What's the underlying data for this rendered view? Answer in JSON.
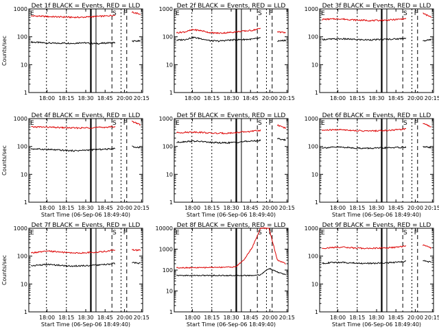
{
  "figure": {
    "background": "#ffffff",
    "axis_color": "#000000",
    "events_color": "#000000",
    "lld_color": "#dd0000"
  },
  "chart_data": [
    {
      "type": "line",
      "title": "Det 1f BLACK = Events, RED = LLD",
      "xlabel": "",
      "ylabel": "Counts/sec",
      "x_tick_labels": [
        "18:00",
        "18:15",
        "18:30",
        "18:45",
        "20:00",
        "20:15"
      ],
      "y_tick_labels": [
        "1000",
        "100",
        "10",
        "1"
      ],
      "ylim": [
        1,
        1000
      ],
      "yscale": "log",
      "markers": {
        "E": "E",
        "S": "S",
        "F": "F"
      },
      "series": [
        {
          "color": "#000000",
          "values": [
            65,
            62,
            60,
            58,
            60,
            58,
            62,
            58,
            57,
            60,
            62,
            null,
            70,
            70
          ]
        },
        {
          "color": "#dd0000",
          "values": [
            560,
            550,
            530,
            520,
            510,
            500,
            500,
            520,
            540,
            560,
            600,
            null,
            760,
            650
          ]
        }
      ]
    },
    {
      "type": "line",
      "title": "Det 2f BLACK = Events, RED = LLD",
      "xlabel": "",
      "ylabel": "",
      "x_tick_labels": [
        "18:00",
        "18:15",
        "18:30",
        "18:45",
        "20:00",
        "20:15"
      ],
      "y_tick_labels": [
        "1000",
        "100",
        "10",
        "1"
      ],
      "ylim": [
        1,
        1000
      ],
      "yscale": "log",
      "markers": {
        "E": "E",
        "S": "S",
        "F": "F"
      },
      "series": [
        {
          "color": "#000000",
          "values": [
            75,
            80,
            95,
            85,
            72,
            70,
            75,
            78,
            80,
            82,
            90,
            null,
            70,
            75
          ]
        },
        {
          "color": "#dd0000",
          "values": [
            140,
            150,
            180,
            165,
            140,
            135,
            140,
            150,
            160,
            170,
            200,
            null,
            150,
            140
          ]
        }
      ]
    },
    {
      "type": "line",
      "title": "Det 3f BLACK = Events, RED = LLD",
      "xlabel": "",
      "ylabel": "",
      "x_tick_labels": [
        "18:00",
        "18:15",
        "18:30",
        "18:45",
        "20:00",
        "20:15"
      ],
      "y_tick_labels": [
        "1000",
        "100",
        "10",
        "1"
      ],
      "ylim": [
        1,
        1000
      ],
      "yscale": "log",
      "markers": {
        "E": "E",
        "S": "S",
        "F": "F"
      },
      "series": [
        {
          "color": "#000000",
          "values": [
            80,
            82,
            84,
            83,
            80,
            78,
            78,
            80,
            82,
            84,
            90,
            null,
            70,
            80
          ]
        },
        {
          "color": "#dd0000",
          "values": [
            420,
            430,
            440,
            420,
            400,
            390,
            380,
            390,
            400,
            420,
            450,
            null,
            700,
            500
          ]
        }
      ]
    },
    {
      "type": "line",
      "title": "Det 4f BLACK = Events, RED = LLD",
      "xlabel": "Start Time (06-Sep-06 18:49:40)",
      "ylabel": "Counts/sec",
      "x_tick_labels": [
        "18:00",
        "18:15",
        "18:30",
        "18:45",
        "20:00",
        "20:15"
      ],
      "y_tick_labels": [
        "1000",
        "100",
        "10",
        "1"
      ],
      "ylim": [
        1,
        1000
      ],
      "yscale": "log",
      "markers": {
        "E": "E",
        "S": "S",
        "F": "F"
      },
      "series": [
        {
          "color": "#000000",
          "values": [
            82,
            80,
            78,
            75,
            72,
            70,
            72,
            75,
            78,
            80,
            85,
            null,
            100,
            90
          ]
        },
        {
          "color": "#dd0000",
          "values": [
            500,
            500,
            490,
            480,
            470,
            460,
            460,
            470,
            480,
            490,
            520,
            null,
            800,
            600
          ]
        }
      ]
    },
    {
      "type": "line",
      "title": "Det 5f BLACK = Events, RED = LLD",
      "xlabel": "Start Time (06-Sep-06 18:49:40)",
      "ylabel": "",
      "x_tick_labels": [
        "18:00",
        "18:15",
        "18:30",
        "18:45",
        "20:00",
        "20:15"
      ],
      "y_tick_labels": [
        "1000",
        "100",
        "10",
        "1"
      ],
      "ylim": [
        1,
        1000
      ],
      "yscale": "log",
      "markers": {
        "E": "E",
        "S": "S",
        "F": "F"
      },
      "series": [
        {
          "color": "#000000",
          "values": [
            140,
            150,
            155,
            150,
            140,
            135,
            135,
            140,
            150,
            155,
            165,
            null,
            190,
            170
          ]
        },
        {
          "color": "#dd0000",
          "values": [
            310,
            320,
            330,
            320,
            300,
            295,
            300,
            310,
            330,
            350,
            380,
            null,
            580,
            450
          ]
        }
      ]
    },
    {
      "type": "line",
      "title": "Det 6f BLACK = Events, RED = LLD",
      "xlabel": "Start Time (06-Sep-06 18:49:40)",
      "ylabel": "",
      "x_tick_labels": [
        "18:00",
        "18:15",
        "18:30",
        "18:45",
        "20:00",
        "20:15"
      ],
      "y_tick_labels": [
        "1000",
        "100",
        "10",
        "1"
      ],
      "ylim": [
        1,
        1000
      ],
      "yscale": "log",
      "markers": {
        "E": "E",
        "S": "S",
        "F": "F"
      },
      "series": [
        {
          "color": "#000000",
          "values": [
            90,
            92,
            95,
            92,
            88,
            86,
            86,
            88,
            90,
            92,
            95,
            null,
            100,
            90
          ]
        },
        {
          "color": "#dd0000",
          "values": [
            380,
            390,
            400,
            390,
            370,
            360,
            360,
            370,
            380,
            400,
            430,
            null,
            700,
            500
          ]
        }
      ]
    },
    {
      "type": "line",
      "title": "Det 7f BLACK = Events, RED = LLD",
      "xlabel": "Start Time (06-Sep-06 18:49:40)",
      "ylabel": "Counts/sec",
      "x_tick_labels": [
        "18:00",
        "18:15",
        "18:30",
        "18:45",
        "20:00",
        "20:15"
      ],
      "y_tick_labels": [
        "1000",
        "100",
        "10",
        "1"
      ],
      "ylim": [
        1,
        1000
      ],
      "yscale": "log",
      "markers": {
        "E": "E",
        "S": "S",
        "F": "F"
      },
      "series": [
        {
          "color": "#000000",
          "values": [
            45,
            48,
            50,
            48,
            45,
            44,
            45,
            46,
            48,
            50,
            55,
            null,
            60,
            55
          ]
        },
        {
          "color": "#dd0000",
          "values": [
            130,
            140,
            150,
            145,
            135,
            130,
            130,
            135,
            140,
            150,
            170,
            null,
            170,
            160
          ]
        }
      ]
    },
    {
      "type": "line",
      "title": "Det 8f BLACK = Events, RED = LLD",
      "xlabel": "Start Time (06-Sep-06 18:49:40)",
      "ylabel": "",
      "x_tick_labels": [
        "18:00",
        "18:15",
        "18:30",
        "18:45",
        "20:00",
        "20:15"
      ],
      "y_tick_labels": [
        "10000",
        "1000",
        "100",
        "10",
        "1"
      ],
      "ylim": [
        1,
        10000
      ],
      "yscale": "log",
      "markers": {
        "E": "E",
        "S": "S",
        "F": "F"
      },
      "series": [
        {
          "color": "#000000",
          "values": [
            55,
            55,
            55,
            55,
            55,
            55,
            55,
            55,
            55,
            55,
            60,
            120,
            80,
            60
          ]
        },
        {
          "color": "#dd0000",
          "values": [
            130,
            130,
            130,
            130,
            135,
            135,
            140,
            140,
            300,
            1200,
            10000,
            10000,
            300,
            200
          ]
        }
      ]
    },
    {
      "type": "line",
      "title": "Det 9f BLACK = Events, RED = LLD",
      "xlabel": "Start Time (06-Sep-06 18:49:40)",
      "ylabel": "",
      "x_tick_labels": [
        "18:00",
        "18:15",
        "18:30",
        "18:45",
        "20:00",
        "20:15"
      ],
      "y_tick_labels": [
        "1000",
        "100",
        "10",
        "1"
      ],
      "ylim": [
        1,
        1000
      ],
      "yscale": "log",
      "markers": {
        "E": "E",
        "S": "S",
        "F": "F"
      },
      "series": [
        {
          "color": "#000000",
          "values": [
            55,
            58,
            60,
            58,
            56,
            55,
            55,
            56,
            58,
            60,
            65,
            null,
            70,
            60
          ]
        },
        {
          "color": "#dd0000",
          "values": [
            190,
            200,
            210,
            205,
            195,
            190,
            190,
            195,
            200,
            210,
            230,
            null,
            250,
            200
          ]
        }
      ]
    }
  ]
}
